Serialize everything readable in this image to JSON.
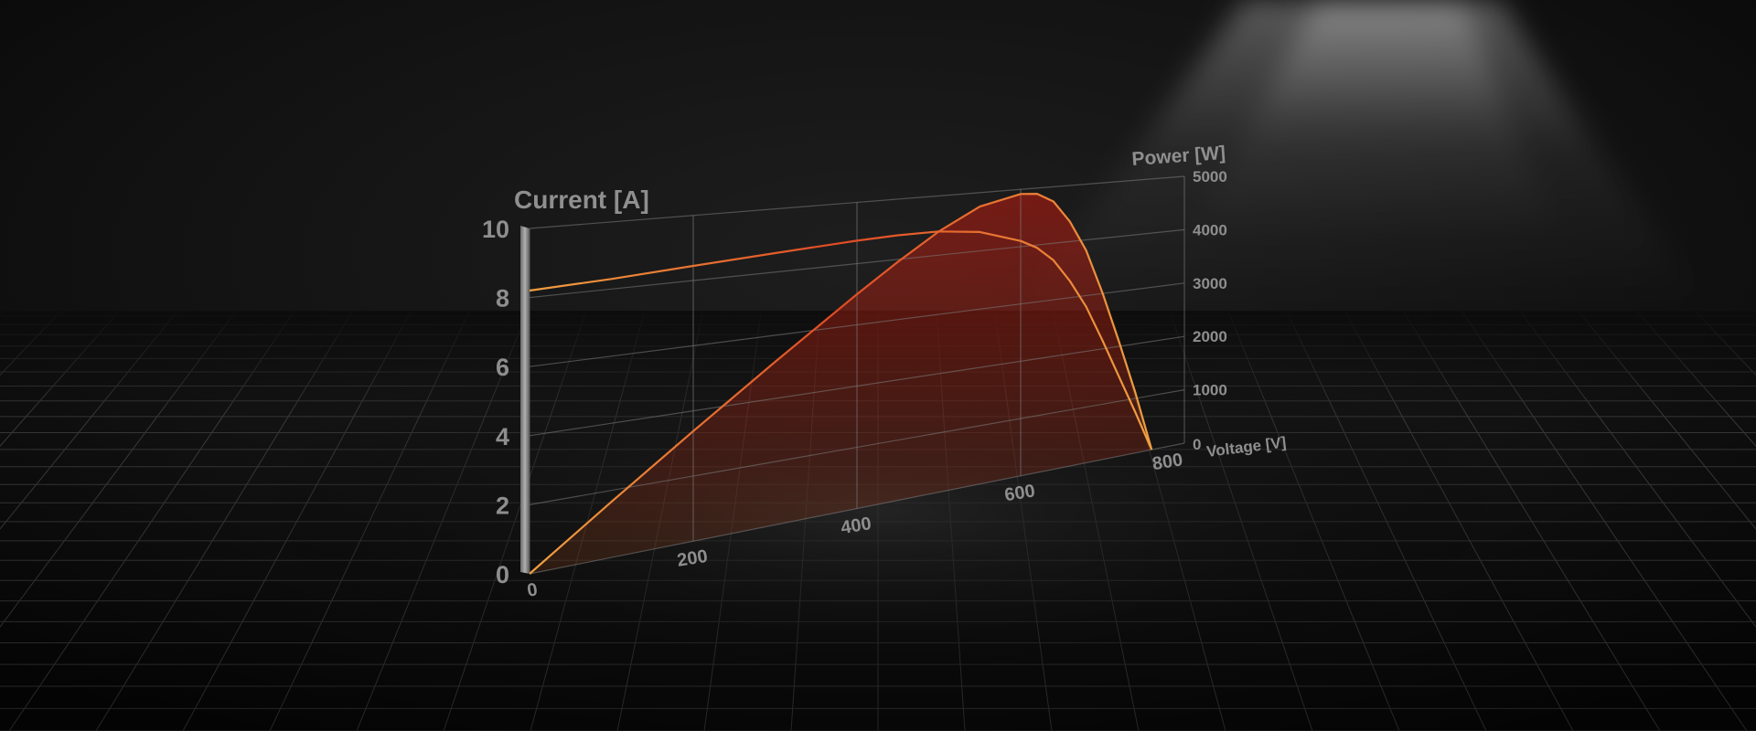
{
  "chart_data": {
    "type": "line",
    "xlabel": "Voltage [V]",
    "ylabel_left": "Current [A]",
    "ylabel_right": "Power [W]",
    "x_ticks": [
      0,
      200,
      400,
      600,
      800
    ],
    "y_left_ticks": [
      0,
      2,
      4,
      6,
      8,
      10
    ],
    "y_right_ticks": [
      0,
      1000,
      2000,
      3000,
      4000,
      5000
    ],
    "x_tick_labels": [
      "0",
      "200",
      "400",
      "600",
      "800"
    ],
    "y_left_tick_labels": [
      "0",
      "2",
      "4",
      "6",
      "8",
      "10"
    ],
    "y_right_tick_labels": [
      "0",
      "1000",
      "2000",
      "3000",
      "4000",
      "5000"
    ],
    "xlim": [
      0,
      800
    ],
    "ylim_left": [
      0,
      10
    ],
    "ylim_right": [
      0,
      5000
    ],
    "grid": true,
    "series": [
      {
        "axis": "left",
        "x": [
          0,
          100,
          200,
          300,
          400,
          450,
          500,
          550,
          600,
          620,
          640,
          660,
          680,
          700,
          720,
          740,
          760
        ],
        "values": [
          8.2,
          8.3,
          8.45,
          8.6,
          8.75,
          8.8,
          8.8,
          8.65,
          8.2,
          7.9,
          7.4,
          6.6,
          5.6,
          4.3,
          2.9,
          1.5,
          0
        ]
      },
      {
        "axis": "right",
        "x": [
          0,
          100,
          200,
          300,
          400,
          450,
          500,
          550,
          600,
          620,
          640,
          660,
          680,
          700,
          720,
          740,
          760
        ],
        "values": [
          0,
          830,
          1690,
          2580,
          3500,
          3960,
          4400,
          4760,
          4920,
          4900,
          4740,
          4360,
          3810,
          3010,
          2090,
          1110,
          0
        ]
      }
    ],
    "colors": {
      "curve_start": "#f0a040",
      "curve_end": "#e07030",
      "fill": "#c01a10",
      "grid": "#8a8a8a",
      "text": "#9a9a9a"
    }
  }
}
